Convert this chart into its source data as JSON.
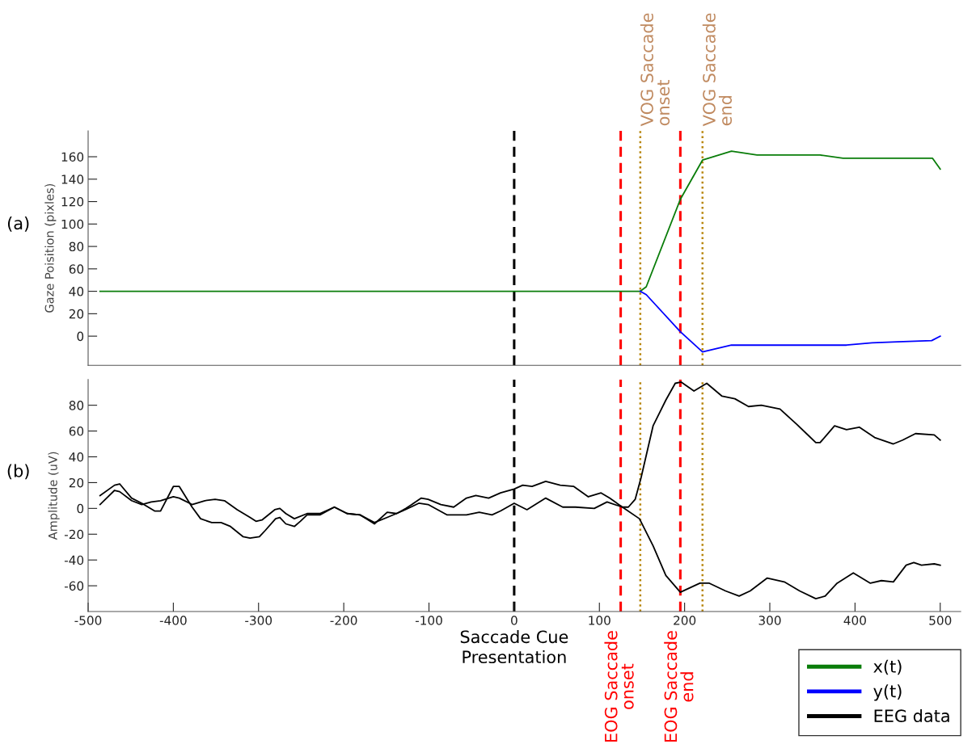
{
  "chart_data": [
    {
      "type": "line",
      "ylabel": "Gaze Poisition (pixles)",
      "annotations": [
        "(a)"
      ],
      "xlim": [
        -500,
        524
      ],
      "ylim": [
        -26,
        183
      ],
      "yticks": [
        0,
        20,
        40,
        60,
        80,
        100,
        120,
        140,
        160
      ],
      "tick_labels": "y",
      "grid": false,
      "legend": "bottom right",
      "marker": "none",
      "line_style": "solid",
      "series": [
        {
          "name": "x(t)",
          "color": "#0a7d0a",
          "x": [
            -486,
            148,
            155,
            195,
            221,
            255,
            285,
            359,
            386,
            491,
            500
          ],
          "values": [
            40,
            40,
            44,
            122,
            157,
            165,
            161.5,
            161.5,
            158.6,
            158.6,
            149
          ]
        },
        {
          "name": "y(t)",
          "color": "#0000ff",
          "x": [
            148,
            155,
            195,
            221,
            255,
            390,
            420,
            450,
            490,
            500
          ],
          "values": [
            40,
            37,
            4,
            -14,
            -8,
            -8,
            -6,
            -5,
            -4,
            0
          ]
        }
      ],
      "ref_lines": [
        {
          "axis": "x",
          "value": 0,
          "label": null,
          "color": "#000000",
          "line_style": "dashed"
        },
        {
          "axis": "x",
          "value": 125,
          "label": null,
          "color": "#ff0000",
          "line_style": "dashed"
        },
        {
          "axis": "x",
          "value": 195,
          "label": null,
          "color": "#ff0000",
          "line_style": "dashed"
        },
        {
          "axis": "x",
          "value": 148,
          "label": "VOG Saccade\nonset",
          "color": "#b8860b",
          "line_style": "dotted"
        },
        {
          "axis": "x",
          "value": 221,
          "label": "VOG Saccade\nend",
          "color": "#b8860b",
          "line_style": "dotted"
        }
      ]
    },
    {
      "type": "line",
      "ylabel": "Amplitude (uV)",
      "annotations": [
        "(b)"
      ],
      "xlim": [
        -500,
        524
      ],
      "ylim": [
        -80,
        100
      ],
      "xticks": [
        -500,
        -400,
        -300,
        -200,
        -100,
        0,
        100,
        200,
        300,
        400,
        500
      ],
      "yticks": [
        -60,
        -40,
        -20,
        0,
        20,
        40,
        60,
        80
      ],
      "grid": false,
      "legend": "bottom right",
      "marker": "none",
      "line_style": "solid",
      "series": [
        {
          "name": "EEG data",
          "color": "#000000",
          "x": [
            -486,
            -469,
            -463,
            -449,
            -437,
            -422,
            -415,
            -400,
            -393,
            -378,
            -368,
            -355,
            -344,
            -333,
            -318,
            -310,
            -299,
            -292,
            -280,
            -275,
            -268,
            -258,
            -251,
            -243,
            -228,
            -211,
            -196,
            -181,
            -164,
            -149,
            -138,
            -127,
            -109,
            -101,
            -86,
            -71,
            -56,
            -45,
            -30,
            -16,
            0,
            10,
            21,
            37,
            54,
            70,
            87,
            102,
            112,
            127,
            134,
            142,
            149,
            163,
            178,
            189,
            196,
            211,
            226,
            244,
            259,
            275,
            290,
            312,
            332,
            343,
            354,
            359,
            376,
            390,
            405,
            423,
            445,
            456,
            471,
            493,
            500
          ],
          "values": [
            10,
            18,
            19,
            8,
            4,
            -2,
            -2,
            17,
            17,
            1,
            -8,
            -11,
            -11,
            -14,
            -22,
            -23,
            -22,
            -17,
            -8,
            -7,
            -12,
            -14,
            -10,
            -5,
            -5,
            1,
            -4,
            -5,
            -12,
            -3,
            -4,
            0,
            8,
            7,
            3,
            1,
            8,
            10,
            8,
            12,
            15,
            18,
            17,
            21,
            18,
            17,
            9,
            12,
            8,
            1,
            1,
            7,
            24,
            64,
            84,
            97,
            98,
            91,
            97,
            87,
            85,
            79,
            80,
            77,
            65,
            58,
            51,
            51,
            64,
            61,
            63,
            55,
            50,
            53,
            58,
            57,
            53
          ]
        },
        {
          "color": "#000000",
          "x": [
            -486,
            -469,
            -463,
            -449,
            -437,
            -426,
            -415,
            -400,
            -393,
            -378,
            -363,
            -351,
            -340,
            -325,
            -310,
            -303,
            -296,
            -281,
            -275,
            -268,
            -258,
            -243,
            -228,
            -211,
            -196,
            -181,
            -164,
            -149,
            -131,
            -112,
            -101,
            -79,
            -56,
            -41,
            -26,
            -16,
            0,
            15,
            37,
            57,
            72,
            94,
            109,
            127,
            147,
            163,
            178,
            195,
            218,
            229,
            248,
            264,
            277,
            297,
            317,
            335,
            354,
            365,
            379,
            398,
            418,
            431,
            445,
            460,
            469,
            478,
            493,
            500
          ],
          "values": [
            3,
            14,
            13,
            6,
            3,
            5,
            6,
            9,
            8,
            3,
            6,
            7,
            6,
            -1,
            -7,
            -10,
            -9,
            -1,
            0,
            -4,
            -8,
            -4,
            -4,
            1,
            -4,
            -5,
            -11,
            -7,
            -2,
            4,
            3,
            -5,
            -5,
            -3,
            -5,
            -2,
            4,
            -1,
            8,
            1,
            1,
            0,
            5,
            1,
            -8,
            -29,
            -52,
            -65,
            -58,
            -58,
            -64,
            -68,
            -64,
            -54,
            -57,
            -64,
            -70,
            -68,
            -58,
            -50,
            -58,
            -56,
            -57,
            -44,
            -42,
            -44,
            -43,
            -44
          ]
        }
      ],
      "ref_lines": [
        {
          "axis": "x",
          "value": 0,
          "label": "Saccade Cue\nPresentation",
          "color": "#000000",
          "line_style": "dashed"
        },
        {
          "axis": "x",
          "value": 125,
          "label": "EOG Saccade\nonset",
          "color": "#ff0000",
          "line_style": "dashed"
        },
        {
          "axis": "x",
          "value": 195,
          "label": "EOG Saccade\nend",
          "color": "#ff0000",
          "line_style": "dashed"
        },
        {
          "axis": "x",
          "value": 148,
          "label": null,
          "color": "#b8860b",
          "line_style": "dotted"
        },
        {
          "axis": "x",
          "value": 221,
          "label": null,
          "color": "#b8860b",
          "line_style": "dotted"
        }
      ]
    }
  ]
}
